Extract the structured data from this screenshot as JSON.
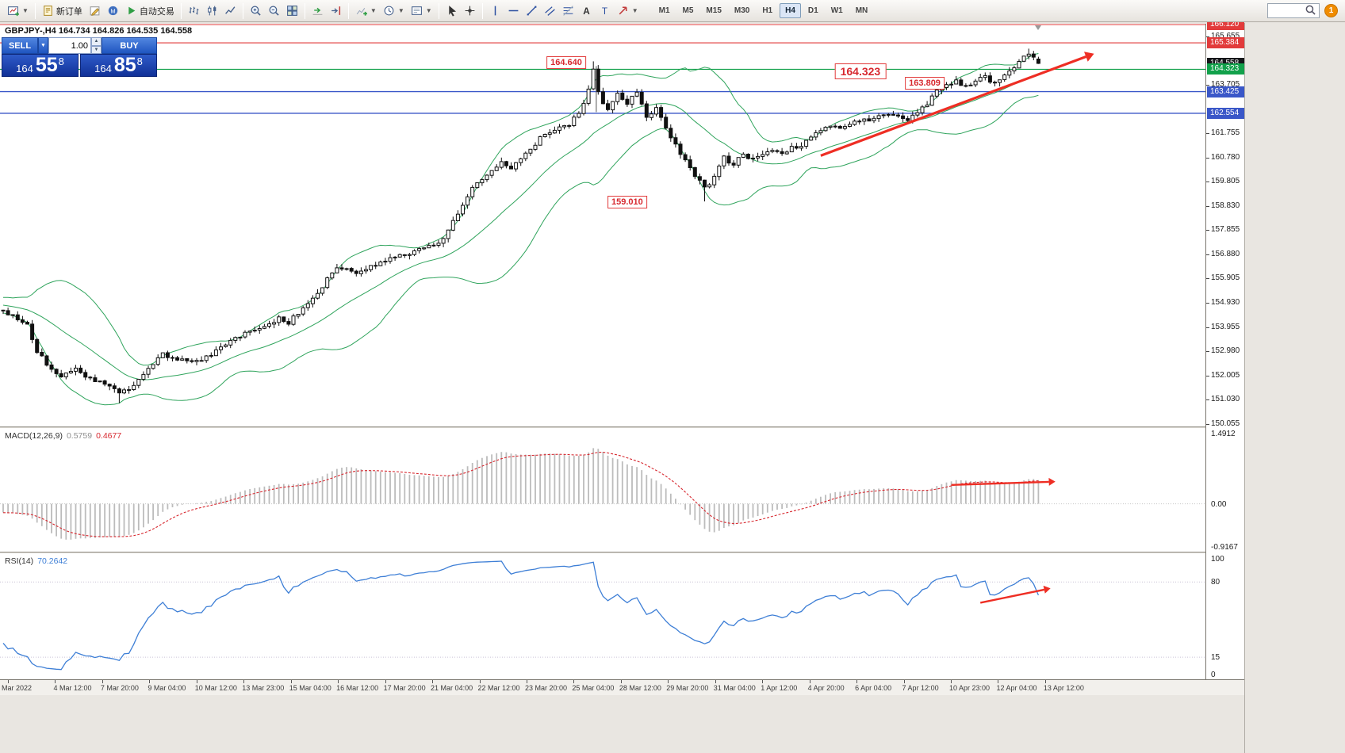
{
  "colors": {
    "red": "#e23b3b",
    "green": "#12a14b",
    "blue": "#3a57c8",
    "black": "#15161a",
    "band": "#2fa45c",
    "rsi": "#3e7fd6",
    "macd_hist": "#bcbcbc",
    "signal": "#d7282f",
    "arrow": "#ee2e24"
  },
  "toolbar": {
    "groups": [
      {
        "items": [
          {
            "name": "new-chart",
            "icon": "chart-new",
            "dropdown": true
          }
        ]
      },
      {
        "items": [
          {
            "name": "new-order",
            "icon": "doc",
            "label": "新订单"
          },
          {
            "name": "metaeditor",
            "icon": "pencil"
          },
          {
            "name": "community",
            "icon": "mq"
          },
          {
            "name": "autotrading",
            "icon": "play",
            "label": "自动交易"
          }
        ]
      },
      {
        "items": [
          {
            "name": "bar-chart-mode",
            "icon": "bars"
          },
          {
            "name": "candle-chart-mode",
            "icon": "candles"
          },
          {
            "name": "line-chart-mode",
            "icon": "line"
          }
        ]
      },
      {
        "items": [
          {
            "name": "zoom-in",
            "icon": "zoom-in"
          },
          {
            "name": "zoom-out",
            "icon": "zoom-out"
          },
          {
            "name": "tile-windows",
            "icon": "grid"
          }
        ]
      },
      {
        "items": [
          {
            "name": "auto-scroll",
            "icon": "autoscroll"
          },
          {
            "name": "chart-shift",
            "icon": "shift"
          }
        ]
      },
      {
        "items": [
          {
            "name": "indicators",
            "icon": "indicators",
            "dropdown": true
          },
          {
            "name": "periods",
            "icon": "clock",
            "dropdown": true
          },
          {
            "name": "templates",
            "icon": "template",
            "dropdown": true
          }
        ]
      },
      {
        "items": [
          {
            "name": "cursor",
            "icon": "cursor"
          },
          {
            "name": "crosshair",
            "icon": "crosshair"
          }
        ]
      },
      {
        "items": [
          {
            "name": "vertical-line",
            "icon": "vline"
          },
          {
            "name": "horizontal-line",
            "icon": "hline"
          },
          {
            "name": "trendline",
            "icon": "tline"
          },
          {
            "name": "channel",
            "icon": "channel"
          },
          {
            "name": "fibonacci",
            "icon": "fibo"
          },
          {
            "name": "text",
            "icon": "text"
          },
          {
            "name": "label",
            "icon": "label"
          },
          {
            "name": "arrows",
            "icon": "arrow",
            "dropdown": true
          }
        ]
      }
    ],
    "timeframes": [
      "M1",
      "M5",
      "M15",
      "M30",
      "H1",
      "H4",
      "D1",
      "W1",
      "MN"
    ],
    "active_timeframe": "H4",
    "search_placeholder": "",
    "notification_count": "1"
  },
  "chart": {
    "title": "GBPJPY-,H4 164.734 164.826 164.535 164.558",
    "one_click": {
      "sell_label": "SELL",
      "buy_label": "BUY",
      "volume": "1.00",
      "sell_small": "164",
      "sell_big": "55",
      "sell_sup": "8",
      "buy_small": "164",
      "buy_big": "85",
      "buy_sup": "8"
    }
  },
  "chart_data": {
    "type": "candlestick",
    "symbol": "GBPJPY-",
    "timeframe": "H4",
    "current_ohlc": {
      "open": 164.734,
      "high": 164.826,
      "low": 164.535,
      "close": 164.558
    },
    "price_axis": {
      "visible_min": 150.055,
      "visible_max": 166.12,
      "tick_step": 0.975,
      "plain_ticks": [
        "165.655",
        "163.705",
        "161.755",
        "160.780",
        "159.805",
        "158.830",
        "157.855",
        "156.880",
        "155.905",
        "154.930",
        "153.955",
        "152.980",
        "152.005",
        "151.030",
        "150.055"
      ]
    },
    "axis_flags": [
      {
        "text": "166.120",
        "price": 166.12,
        "color": "red"
      },
      {
        "text": "165.384",
        "price": 165.384,
        "color": "red"
      },
      {
        "text": "164.558",
        "price": 164.558,
        "color": "black"
      },
      {
        "text": "164.323",
        "price": 164.323,
        "color": "green"
      },
      {
        "text": "163.425",
        "price": 163.425,
        "color": "blue"
      },
      {
        "text": "162.554",
        "price": 162.554,
        "color": "blue"
      }
    ],
    "hlines": [
      {
        "price": 166.12,
        "color": "red"
      },
      {
        "price": 165.384,
        "color": "red"
      },
      {
        "price": 164.323,
        "color": "green"
      },
      {
        "price": 163.425,
        "color": "blue"
      },
      {
        "price": 162.554,
        "color": "blue"
      }
    ],
    "annotations": [
      {
        "text": "164.640",
        "index": 116.4,
        "price": 164.59,
        "size": "normal"
      },
      {
        "text": "164.323",
        "index": 177.2,
        "price": 164.24,
        "size": "large"
      },
      {
        "text": "163.809",
        "index": 190.5,
        "price": 163.76,
        "size": "normal"
      },
      {
        "text": "159.010",
        "index": 129,
        "price": 158.98,
        "size": "normal"
      }
    ],
    "vertical_mark": {
      "index": 122.6,
      "from_price": 164.45,
      "to_price": 162.6
    },
    "arrows": [
      {
        "panel": "price",
        "from": [
          169,
          160.85
        ],
        "to": [
          225.5,
          164.95
        ],
        "width": 3.2
      },
      {
        "panel": "macd",
        "from": [
          196,
          0.4
        ],
        "to": [
          217.5,
          0.47
        ],
        "width": 2.4
      },
      {
        "panel": "rsi",
        "from": [
          202,
          62
        ],
        "to": [
          216.5,
          74.5
        ],
        "width": 2.4
      }
    ],
    "close_anchors": [
      [
        -40,
        155.9
      ],
      [
        -30,
        155.4
      ],
      [
        -20,
        155.1
      ],
      [
        -10,
        154.85
      ],
      [
        0,
        154.55
      ],
      [
        3,
        154.3
      ],
      [
        5,
        154.05
      ],
      [
        7,
        153.0
      ],
      [
        9,
        152.45
      ],
      [
        12,
        152.0
      ],
      [
        15,
        152.25
      ],
      [
        18,
        151.9
      ],
      [
        21,
        151.7
      ],
      [
        24,
        151.3
      ],
      [
        26,
        151.45
      ],
      [
        28,
        151.8
      ],
      [
        30,
        152.35
      ],
      [
        33,
        152.85
      ],
      [
        36,
        152.7
      ],
      [
        39,
        152.5
      ],
      [
        42,
        152.75
      ],
      [
        45,
        153.1
      ],
      [
        48,
        153.5
      ],
      [
        51,
        153.8
      ],
      [
        54,
        153.95
      ],
      [
        57,
        154.35
      ],
      [
        59,
        154.15
      ],
      [
        62,
        154.7
      ],
      [
        65,
        155.3
      ],
      [
        68,
        156.2
      ],
      [
        70,
        156.35
      ],
      [
        73,
        156.1
      ],
      [
        76,
        156.45
      ],
      [
        79,
        156.6
      ],
      [
        82,
        156.85
      ],
      [
        85,
        157.0
      ],
      [
        88,
        157.25
      ],
      [
        91,
        157.45
      ],
      [
        93,
        158.2
      ],
      [
        95,
        158.9
      ],
      [
        97,
        159.6
      ],
      [
        99,
        159.85
      ],
      [
        101,
        160.25
      ],
      [
        103,
        160.6
      ],
      [
        105,
        160.35
      ],
      [
        107,
        160.7
      ],
      [
        109,
        161.05
      ],
      [
        111,
        161.55
      ],
      [
        113,
        161.8
      ],
      [
        115,
        161.95
      ],
      [
        117,
        162.1
      ],
      [
        119,
        162.55
      ],
      [
        121,
        163.5
      ],
      [
        122,
        164.25
      ],
      [
        123,
        163.35
      ],
      [
        124,
        162.9
      ],
      [
        125,
        162.65
      ],
      [
        126,
        163.05
      ],
      [
        127,
        163.4
      ],
      [
        128,
        163.1
      ],
      [
        129,
        162.85
      ],
      [
        130,
        163.25
      ],
      [
        131,
        163.45
      ],
      [
        132,
        162.9
      ],
      [
        133,
        162.35
      ],
      [
        134,
        162.6
      ],
      [
        135,
        162.8
      ],
      [
        136,
        162.35
      ],
      [
        137,
        161.95
      ],
      [
        138,
        161.6
      ],
      [
        139,
        161.3
      ],
      [
        140,
        160.95
      ],
      [
        141,
        160.7
      ],
      [
        142,
        160.35
      ],
      [
        143,
        160.05
      ],
      [
        144,
        159.8
      ],
      [
        145,
        159.55
      ],
      [
        146,
        159.75
      ],
      [
        147,
        159.95
      ],
      [
        148,
        160.45
      ],
      [
        149,
        160.8
      ],
      [
        150,
        160.6
      ],
      [
        151,
        160.5
      ],
      [
        152,
        160.75
      ],
      [
        153,
        160.9
      ],
      [
        155,
        160.7
      ],
      [
        157,
        160.85
      ],
      [
        159,
        161.1
      ],
      [
        161,
        160.95
      ],
      [
        163,
        161.15
      ],
      [
        165,
        161.3
      ],
      [
        167,
        161.6
      ],
      [
        169,
        161.9
      ],
      [
        171,
        162.1
      ],
      [
        173,
        162.0
      ],
      [
        175,
        162.15
      ],
      [
        177,
        162.3
      ],
      [
        179,
        162.2
      ],
      [
        181,
        162.4
      ],
      [
        183,
        162.5
      ],
      [
        185,
        162.45
      ],
      [
        187,
        162.25
      ],
      [
        189,
        162.6
      ],
      [
        191,
        162.95
      ],
      [
        193,
        163.45
      ],
      [
        195,
        163.7
      ],
      [
        197,
        163.85
      ],
      [
        199,
        163.6
      ],
      [
        201,
        163.9
      ],
      [
        203,
        164.05
      ],
      [
        204,
        163.75
      ],
      [
        205,
        163.85
      ],
      [
        206,
        163.95
      ],
      [
        207,
        164.1
      ],
      [
        208,
        164.25
      ],
      [
        209,
        164.45
      ],
      [
        210,
        164.6
      ],
      [
        211,
        164.85
      ],
      [
        212,
        165.0
      ],
      [
        213,
        164.75
      ],
      [
        214,
        164.558
      ]
    ],
    "forced_candles": [
      {
        "index": 24,
        "low": 150.9
      },
      {
        "index": 122,
        "high": 164.64
      },
      {
        "index": 145,
        "low": 159.01
      },
      {
        "index": 212,
        "high": 165.15
      },
      {
        "index": 214,
        "open": 164.734,
        "high": 164.826,
        "low": 164.535,
        "close": 164.558
      }
    ],
    "indicators": {
      "bollinger": {
        "period": 20,
        "deviation": 2
      },
      "macd": {
        "label": "MACD(12,26,9)",
        "main_text": "0.5759",
        "signal_text": "0.4677",
        "axis_max": 1.4912,
        "axis_min": -0.9167,
        "axis_labels": [
          "1.4912",
          "0.00",
          "-0.9167"
        ]
      },
      "rsi": {
        "label": "RSI(14)",
        "value_text": "70.2642",
        "levels": [
          80,
          15
        ],
        "axis_labels": [
          "100",
          "80",
          "15",
          "0"
        ]
      }
    },
    "time_ticks": [
      "Mar 2022",
      "4 Mar 12:00",
      "7 Mar 20:00",
      "9 Mar 04:00",
      "10 Mar 12:00",
      "13 Mar 23:00",
      "15 Mar 04:00",
      "16 Mar 12:00",
      "17 Mar 20:00",
      "21 Mar 04:00",
      "22 Mar 12:00",
      "23 Mar 20:00",
      "25 Mar 04:00",
      "28 Mar 12:00",
      "29 Mar 20:00",
      "31 Mar 04:00",
      "1 Apr 12:00",
      "4 Apr 20:00",
      "6 Apr 04:00",
      "7 Apr 12:00",
      "10 Apr 23:00",
      "12 Apr 04:00",
      "13 Apr 12:00"
    ]
  }
}
